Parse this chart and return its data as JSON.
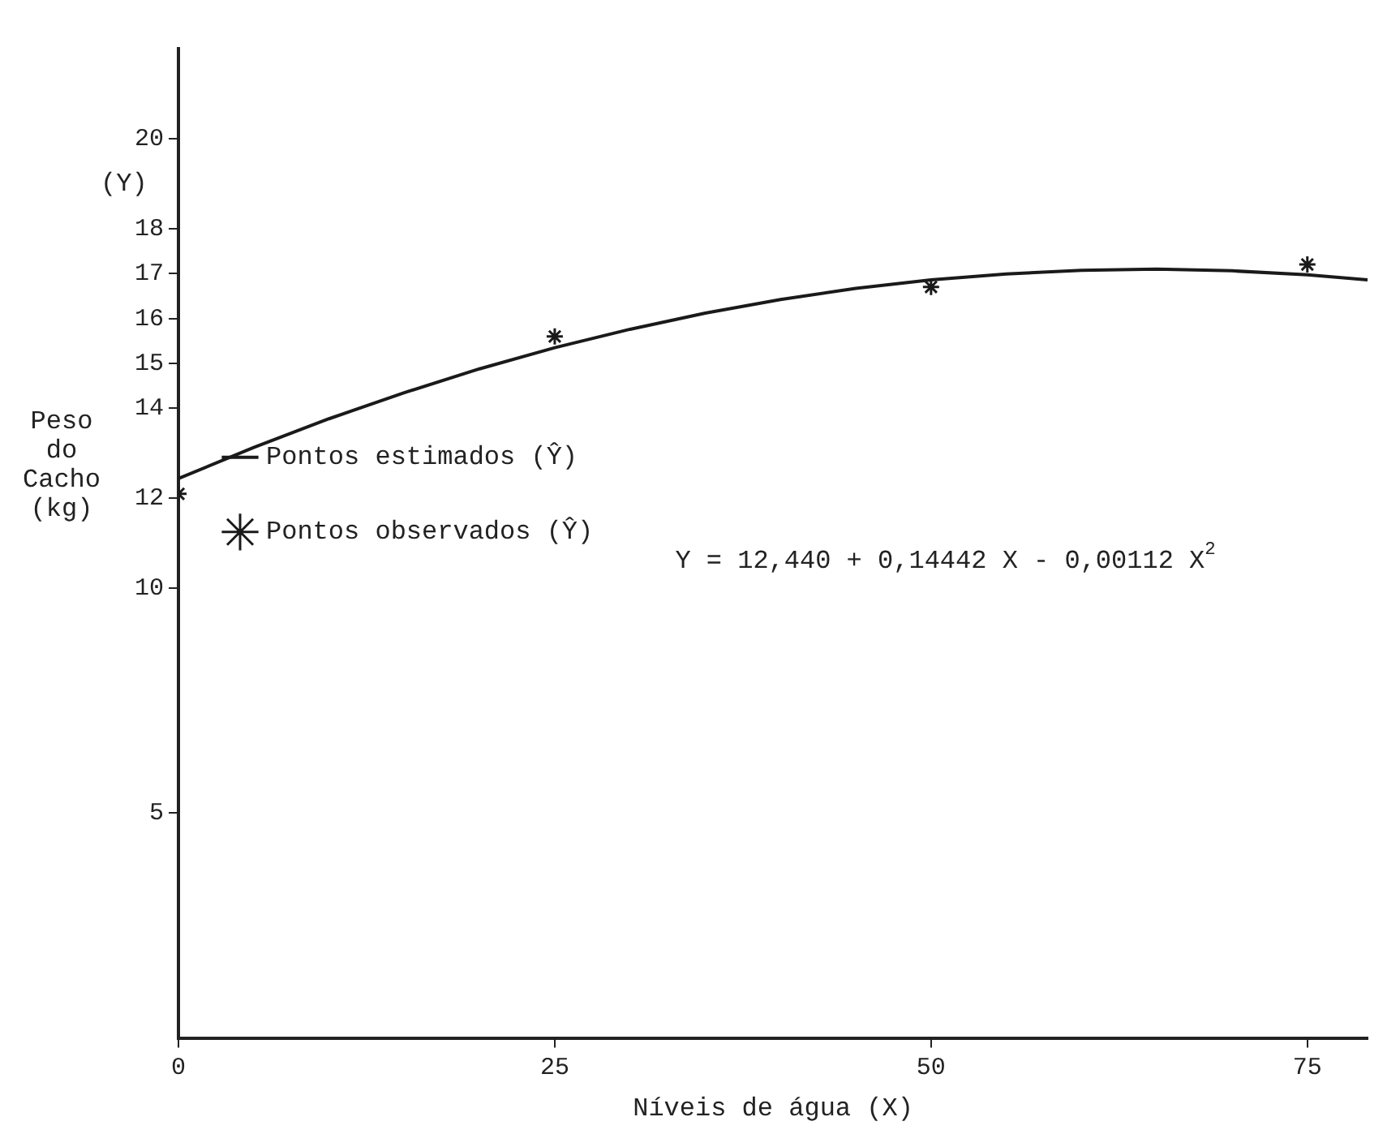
{
  "chart_data": {
    "type": "line",
    "xlabel": "Níveis de água (X)",
    "ylabel": "Peso do Cacho (kg)",
    "annotations": [
      "(Y)",
      "Y = 12,440 + 0,14442 X - 0,00112 X$^{2}$"
    ],
    "xlim": [
      0,
      79
    ],
    "xticks": [
      0,
      25,
      50,
      75
    ],
    "ylim": [
      0,
      22
    ],
    "yticks": [
      5,
      10,
      12,
      14,
      15,
      16,
      17,
      18,
      20
    ],
    "grid": false,
    "legend": "left",
    "series": [
      {
        "name": "Pontos estimados (Ŷ)",
        "type": "line",
        "color": "#1a1a1a",
        "marker": "none",
        "line_style": "solid",
        "x": [
          0,
          5,
          10,
          15,
          20,
          25,
          30,
          35,
          40,
          45,
          50,
          55,
          60,
          65,
          70,
          75,
          79
        ],
        "values": [
          12.44,
          13.13,
          13.77,
          14.35,
          14.88,
          15.35,
          15.76,
          16.12,
          16.42,
          16.67,
          16.86,
          16.99,
          17.07,
          17.1,
          17.06,
          16.97,
          16.86
        ]
      },
      {
        "name": "Pontos observados (Ŷ)",
        "type": "scatter",
        "color": "#1a1a1a",
        "marker": "cross",
        "x": [
          0,
          25,
          50,
          75
        ],
        "values": [
          12.1,
          15.6,
          16.7,
          17.2
        ]
      }
    ]
  }
}
